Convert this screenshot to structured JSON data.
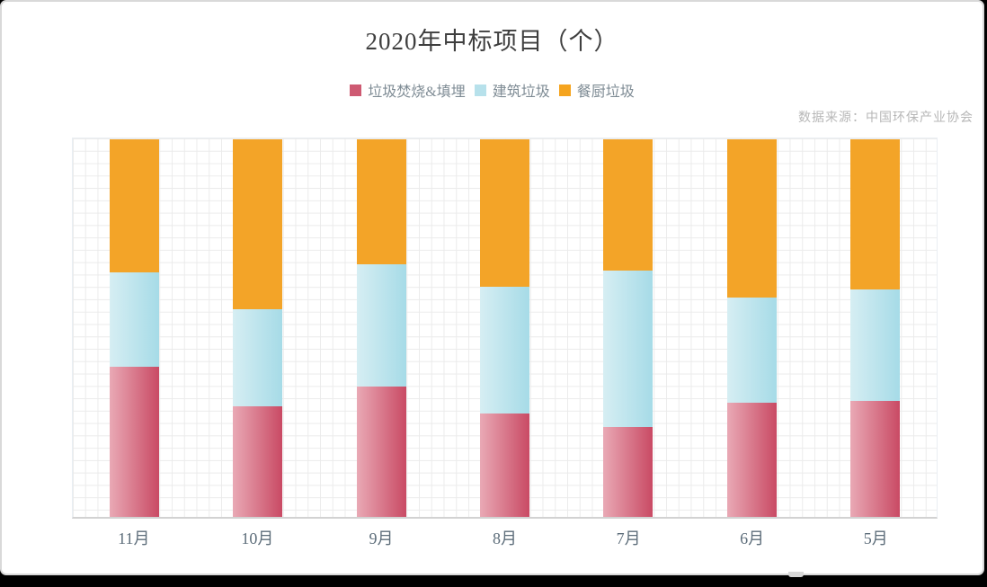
{
  "chart_data": {
    "type": "bar",
    "stacking": "percent",
    "title": "2020年中标项目（个）",
    "source": "数据来源：中国环保产业协会",
    "categories": [
      "11月",
      "10月",
      "9月",
      "8月",
      "7月",
      "6月",
      "5月"
    ],
    "series": [
      {
        "name": "垃圾焚烧&填埋",
        "legend_color": "#CE5A72",
        "gradient": [
          "#E9A9B5",
          "#C94A64"
        ],
        "values": [
          39.8,
          29.3,
          34.5,
          27.4,
          23.8,
          30.2,
          30.7
        ]
      },
      {
        "name": "建筑垃圾",
        "legend_color": "#B7E1EB",
        "gradient": [
          "#D6EEF3",
          "#A6DBE7"
        ],
        "values": [
          25.0,
          25.7,
          32.4,
          33.6,
          41.4,
          27.9,
          29.5
        ]
      },
      {
        "name": "餐厨垃圾",
        "legend_color": "#F5A41F",
        "gradient": [
          "#F3A428",
          "#F3A428"
        ],
        "values": [
          35.2,
          45.0,
          33.1,
          39.0,
          34.8,
          41.9,
          39.8
        ]
      }
    ],
    "ylim": [
      0,
      100
    ],
    "grid": true,
    "legend_position": "top",
    "xlabel": "",
    "ylabel": ""
  },
  "window": {
    "bottom_bar_color": "#000000"
  }
}
